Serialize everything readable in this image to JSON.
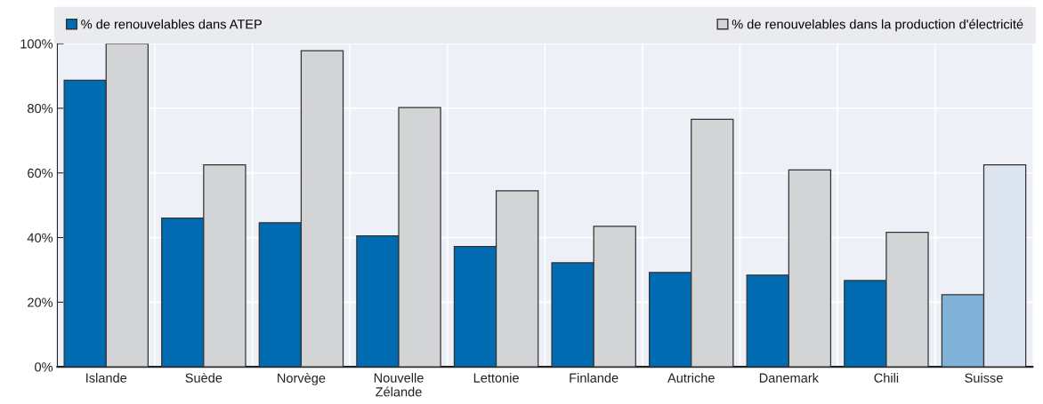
{
  "chart_data": {
    "type": "bar",
    "categories": [
      "Islande",
      "Suède",
      "Norvège",
      "Nouvelle\nZélande",
      "Lettonie",
      "Finlande",
      "Autriche",
      "Danemark",
      "Chili",
      "Suisse"
    ],
    "series": [
      {
        "name": "% de renouvelables dans ATEP",
        "color": "#006bb0",
        "colors": [
          "#006bb0",
          "#006bb0",
          "#006bb0",
          "#006bb0",
          "#006bb0",
          "#006bb0",
          "#006bb0",
          "#006bb0",
          "#006bb0",
          "#7fb2d6"
        ],
        "values": [
          88.7,
          46.0,
          44.6,
          40.5,
          37.2,
          32.2,
          29.2,
          28.4,
          26.7,
          22.3
        ]
      },
      {
        "name": "% de renouvelables dans la production d'électricité",
        "color": "#d3d4d6",
        "colors": [
          "#d3d4d6",
          "#d3d4d6",
          "#d3d4d6",
          "#d3d4d6",
          "#d3d4d6",
          "#d3d4d6",
          "#d3d4d6",
          "#d3d4d6",
          "#d3d4d6",
          "#dde5f0"
        ],
        "values": [
          100,
          62.5,
          97.8,
          80.2,
          54.5,
          43.5,
          76.6,
          60.9,
          41.6,
          62.5
        ]
      }
    ],
    "ylim": [
      0,
      100
    ],
    "yticks": [
      {
        "value": 0,
        "label": "0%"
      },
      {
        "value": 20,
        "label": "20%"
      },
      {
        "value": 40,
        "label": "40%"
      },
      {
        "value": 60,
        "label": "60%"
      },
      {
        "value": 80,
        "label": "80%"
      },
      {
        "value": 100,
        "label": "100%"
      }
    ],
    "grid": true,
    "legend": "top"
  }
}
